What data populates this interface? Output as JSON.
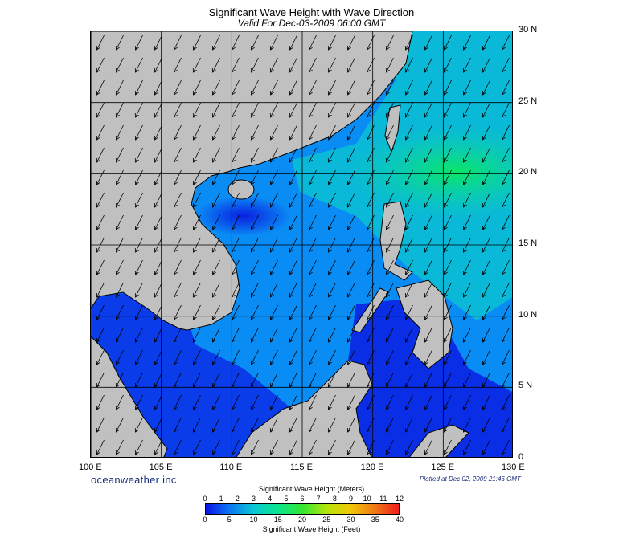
{
  "title": "Significant Wave Height with Wave Direction",
  "subtitle": "Valid For Dec-03-2009 06:00 GMT",
  "map": {
    "lon_range": [
      100,
      130
    ],
    "lat_range": [
      0,
      30
    ],
    "grid": true,
    "lat_labels": [
      "30 N",
      "25 N",
      "20 N",
      "15 N",
      "10 N",
      "5 N",
      "0"
    ],
    "lon_labels": [
      "100 E",
      "105 E",
      "110 E",
      "115 E",
      "120 E",
      "125 E",
      "130 E"
    ],
    "wave_direction": "toward southwest",
    "colors": {
      "land": "#c0c0c0",
      "low": "#0a1ee0",
      "mid": "#0a8cf5",
      "high": "#0ad6b4",
      "peak": "#0ae664",
      "arrow": "#000000"
    }
  },
  "brand": "oceanweather inc.",
  "plotted": "Plotted at Dec 02, 2009 21:46 GMT",
  "colorbar": {
    "title_top": "Significant Wave Height (Meters)",
    "title_bottom": "Significant Wave Height (Feet)",
    "meters": [
      "0",
      "1",
      "2",
      "3",
      "4",
      "5",
      "6",
      "7",
      "8",
      "9",
      "10",
      "11",
      "12"
    ],
    "feet": [
      "0",
      "5",
      "10",
      "15",
      "20",
      "25",
      "30",
      "35",
      "40"
    ],
    "gradient": [
      "#0a14e6",
      "#0a78f5",
      "#0ac8d2",
      "#0ae68c",
      "#32e632",
      "#b4e60a",
      "#f0c80a",
      "#f07814",
      "#f01e1e"
    ]
  }
}
